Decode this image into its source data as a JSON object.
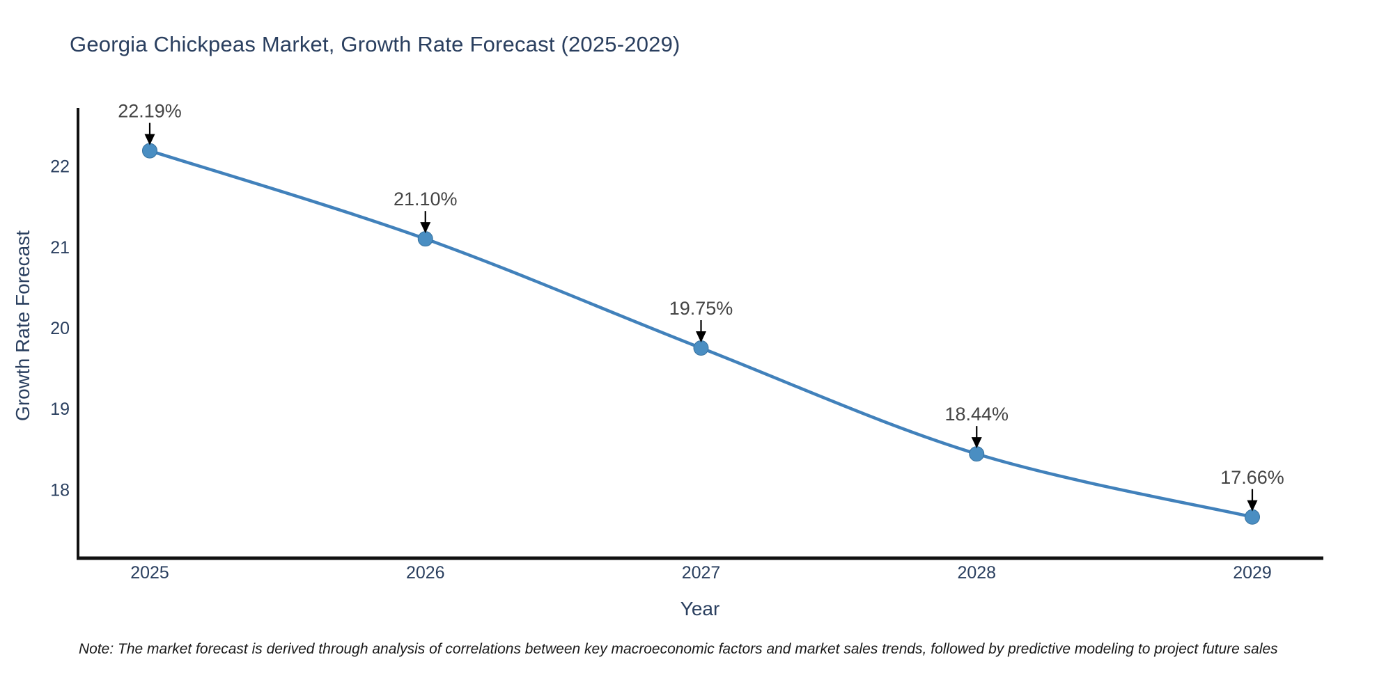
{
  "chart_data": {
    "type": "line",
    "title": "Georgia Chickpeas Market, Growth Rate Forecast (2025-2029)",
    "xlabel": "Year",
    "ylabel": "Growth Rate Forecast",
    "categories": [
      "2025",
      "2026",
      "2027",
      "2028",
      "2029"
    ],
    "values": [
      22.19,
      21.1,
      19.75,
      18.44,
      17.66
    ],
    "point_labels": [
      "22.19%",
      "21.10%",
      "19.75%",
      "18.44%",
      "17.66%"
    ],
    "yticks": [
      22,
      21,
      20,
      19,
      18
    ],
    "ylim": [
      17.15,
      22.72
    ],
    "grid": false,
    "legend": "none",
    "line_color": "#4181bb",
    "marker_color": "#4a8ec2",
    "marker_edge_color": "#36719f",
    "axis_color": "#111111",
    "tick_label_color": "#2a3f5f",
    "title_color": "#2a3f5f",
    "annotation_text_color": "#444444",
    "annotation_arrow_color": "#000000"
  },
  "note": {
    "text": "Note: The market forecast is derived through analysis of correlations between key macroeconomic factors and market sales trends, followed by predictive modeling to project future sales"
  }
}
